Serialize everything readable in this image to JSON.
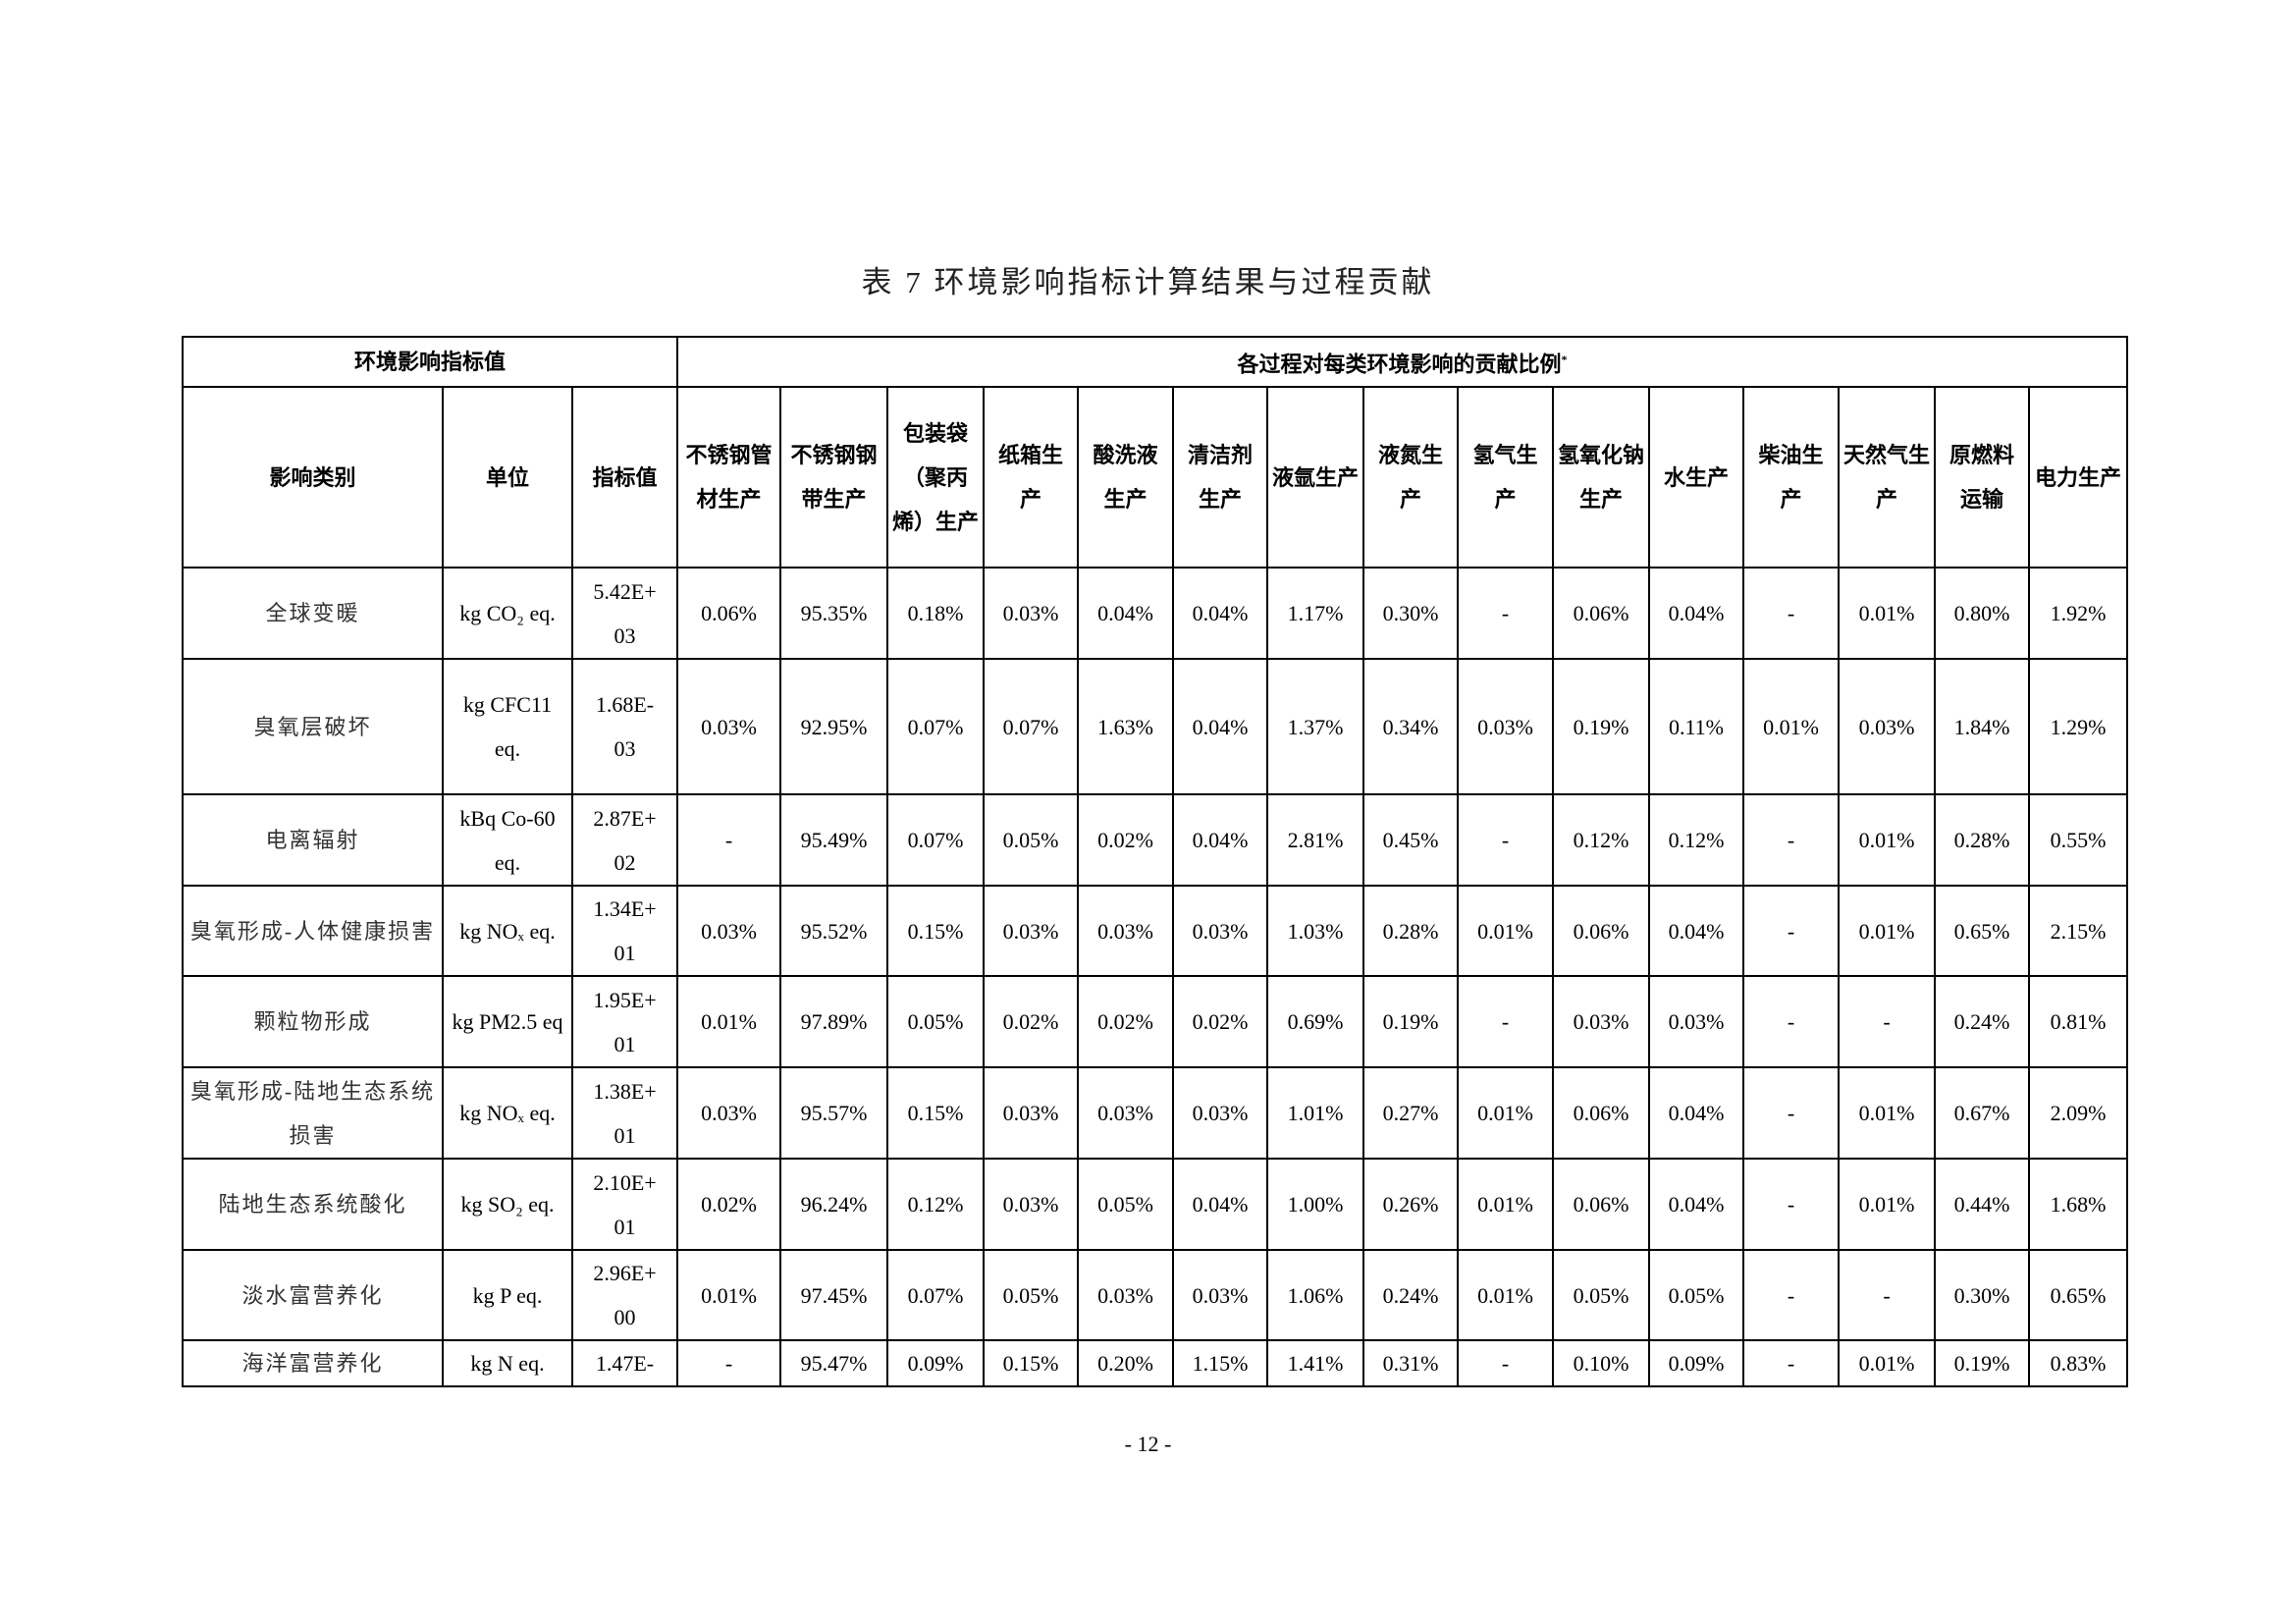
{
  "title": "表 7  环境影响指标计算结果与过程贡献",
  "group_headers": {
    "left": "环境影响指标值",
    "right": "各过程对每类环境影响的贡献比例",
    "right_mark": "*"
  },
  "column_headers": [
    "影响类别",
    "单位",
    "指标值",
    "不锈钢管材生产",
    "不锈钢钢带生产",
    "包装袋（聚丙烯）生产",
    "纸箱生产",
    "酸洗液生产",
    "清洁剂生产",
    "液氩生产",
    "液氮生产",
    "氢气生产",
    "氢氧化钠生产",
    "水生产",
    "柴油生产",
    "天然气生产",
    "原燃料运输",
    "电力生产"
  ],
  "rows": [
    {
      "category": "全球变暖",
      "unit": "kg CO₂ eq.",
      "value": "5.42E+03",
      "shares": [
        "0.06%",
        "95.35%",
        "0.18%",
        "0.03%",
        "0.04%",
        "0.04%",
        "1.17%",
        "0.30%",
        "-",
        "0.06%",
        "0.04%",
        "-",
        "0.01%",
        "0.80%",
        "1.92%"
      ]
    },
    {
      "category": "臭氧层破坏",
      "unit": "kg CFC11 eq.",
      "value": "1.68E-03",
      "shares": [
        "0.03%",
        "92.95%",
        "0.07%",
        "0.07%",
        "1.63%",
        "0.04%",
        "1.37%",
        "0.34%",
        "0.03%",
        "0.19%",
        "0.11%",
        "0.01%",
        "0.03%",
        "1.84%",
        "1.29%"
      ]
    },
    {
      "category": "电离辐射",
      "unit": "kBq Co-60 eq.",
      "value": "2.87E+02",
      "shares": [
        "-",
        "95.49%",
        "0.07%",
        "0.05%",
        "0.02%",
        "0.04%",
        "2.81%",
        "0.45%",
        "-",
        "0.12%",
        "0.12%",
        "-",
        "0.01%",
        "0.28%",
        "0.55%"
      ]
    },
    {
      "category": "臭氧形成-人体健康损害",
      "unit": "kg NOₓ eq.",
      "value": "1.34E+01",
      "shares": [
        "0.03%",
        "95.52%",
        "0.15%",
        "0.03%",
        "0.03%",
        "0.03%",
        "1.03%",
        "0.28%",
        "0.01%",
        "0.06%",
        "0.04%",
        "-",
        "0.01%",
        "0.65%",
        "2.15%"
      ]
    },
    {
      "category": "颗粒物形成",
      "unit": "kg PM2.5 eq",
      "value": "1.95E+01",
      "shares": [
        "0.01%",
        "97.89%",
        "0.05%",
        "0.02%",
        "0.02%",
        "0.02%",
        "0.69%",
        "0.19%",
        "-",
        "0.03%",
        "0.03%",
        "-",
        "-",
        "0.24%",
        "0.81%"
      ]
    },
    {
      "category": "臭氧形成-陆地生态系统损害",
      "unit": "kg NOₓ eq.",
      "value": "1.38E+01",
      "shares": [
        "0.03%",
        "95.57%",
        "0.15%",
        "0.03%",
        "0.03%",
        "0.03%",
        "1.01%",
        "0.27%",
        "0.01%",
        "0.06%",
        "0.04%",
        "-",
        "0.01%",
        "0.67%",
        "2.09%"
      ]
    },
    {
      "category": "陆地生态系统酸化",
      "unit": "kg SO₂ eq.",
      "value": "2.10E+01",
      "shares": [
        "0.02%",
        "96.24%",
        "0.12%",
        "0.03%",
        "0.05%",
        "0.04%",
        "1.00%",
        "0.26%",
        "0.01%",
        "0.06%",
        "0.04%",
        "-",
        "0.01%",
        "0.44%",
        "1.68%"
      ]
    },
    {
      "category": "淡水富营养化",
      "unit": "kg P eq.",
      "value": "2.96E+00",
      "shares": [
        "0.01%",
        "97.45%",
        "0.07%",
        "0.05%",
        "0.03%",
        "0.03%",
        "1.06%",
        "0.24%",
        "0.01%",
        "0.05%",
        "0.05%",
        "-",
        "-",
        "0.30%",
        "0.65%"
      ]
    },
    {
      "category": "海洋富营养化",
      "unit": "kg N eq.",
      "value": "1.47E-",
      "shares": [
        "-",
        "95.47%",
        "0.09%",
        "0.15%",
        "0.20%",
        "1.15%",
        "1.41%",
        "0.31%",
        "-",
        "0.10%",
        "0.09%",
        "-",
        "0.01%",
        "0.19%",
        "0.83%"
      ]
    }
  ],
  "page_number": "- 12 -"
}
